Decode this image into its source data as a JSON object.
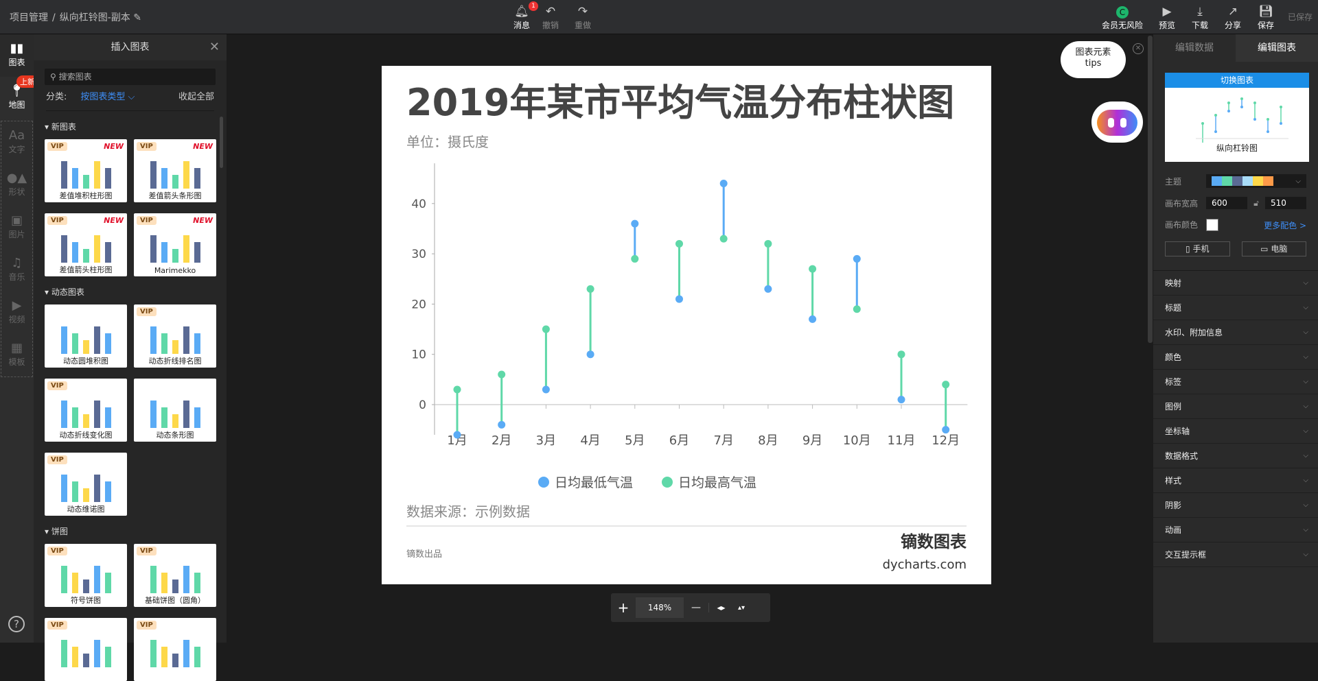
{
  "header": {
    "project": "项目管理",
    "separator": "/",
    "doc_title": "纵向杠铃图-副本",
    "msg": "消息",
    "msg_count": "1",
    "undo": "撤销",
    "redo": "重做",
    "member": "会员无风险",
    "preview": "预览",
    "download": "下载",
    "share": "分享",
    "save": "保存",
    "saved": "已保存"
  },
  "rail": {
    "items": [
      {
        "label": "图表",
        "icon": "bar-chart-icon"
      },
      {
        "label": "地图",
        "icon": "map-pin-icon"
      },
      {
        "label": "文字",
        "icon": "text-icon"
      },
      {
        "label": "形状",
        "icon": "shape-icon"
      },
      {
        "label": "图片",
        "icon": "image-icon"
      },
      {
        "label": "音乐",
        "icon": "music-icon"
      },
      {
        "label": "视频",
        "icon": "video-icon"
      },
      {
        "label": "模板",
        "icon": "template-icon"
      }
    ],
    "new_tag": "上新",
    "help": "?"
  },
  "panel": {
    "title": "插入图表",
    "search_placeholder": "搜索图表",
    "category_label": "分类:",
    "category_value": "按图表类型",
    "collapse_all": "收起全部",
    "sections": [
      {
        "title": "新图表",
        "cards": [
          {
            "label": "差值堆积柱形图",
            "vip": "VIP",
            "new": "NEW"
          },
          {
            "label": "差值箭头条形图",
            "vip": "VIP",
            "new": "NEW"
          },
          {
            "label": "差值箭头柱形图",
            "vip": "VIP",
            "new": "NEW"
          },
          {
            "label": "Marimekko",
            "vip": "VIP",
            "new": "NEW"
          }
        ]
      },
      {
        "title": "动态图表",
        "cards": [
          {
            "label": "动态圆堆积图"
          },
          {
            "label": "动态折线排名图",
            "vip": "VIP"
          },
          {
            "label": "动态折线变化图",
            "vip": "VIP"
          },
          {
            "label": "动态条形图"
          },
          {
            "label": "动态维诺图",
            "vip": "VIP"
          }
        ]
      },
      {
        "title": "饼图",
        "cards": [
          {
            "label": "符号饼图",
            "vip": "VIP"
          },
          {
            "label": "基础饼图（圆角）",
            "vip": "VIP"
          },
          {
            "label": "",
            "vip": "VIP"
          },
          {
            "label": "",
            "vip": "VIP"
          }
        ]
      }
    ]
  },
  "zoom": {
    "value": "148%",
    "plus": "+",
    "minus": "—"
  },
  "tips": {
    "line1": "图表元素",
    "line2": "tips"
  },
  "right": {
    "tab_data": "编辑数据",
    "tab_chart": "编辑图表",
    "switch": "切换图表",
    "chart_name": "纵向杠铃图",
    "theme_label": "主题",
    "theme_colors": [
      "#5aabf5",
      "#5fd8a8",
      "#5a6a94",
      "#a8dcf8",
      "#fdd84a",
      "#fd9a48"
    ],
    "size_label": "画布宽高",
    "width": "600",
    "height": "510",
    "bg_label": "画布颜色",
    "bg_color": "#ffffff",
    "more_colors": "更多配色 >",
    "mobile": "手机",
    "desktop": "电脑",
    "sections": [
      "映射",
      "标题",
      "水印、附加信息",
      "颜色",
      "标签",
      "图例",
      "坐标轴",
      "数据格式",
      "样式",
      "阴影",
      "动画",
      "交互提示框"
    ]
  },
  "chart_data": {
    "type": "dumbbell",
    "title": "2019年某市平均气温分布柱状图",
    "subtitle": "单位：摄氏度",
    "source": "数据来源：示例数据",
    "footer_left": "镝数出品",
    "brand": "镝数图表",
    "brand_url": "dycharts.com",
    "categories": [
      "1月",
      "2月",
      "3月",
      "4月",
      "5月",
      "6月",
      "7月",
      "8月",
      "9月",
      "10月",
      "11月",
      "12月"
    ],
    "series": [
      {
        "name": "日均最低气温",
        "color": "#5aabf5",
        "values": [
          -6,
          -4,
          3,
          10,
          36,
          21,
          44,
          23,
          17,
          29,
          1,
          -5
        ]
      },
      {
        "name": "日均最高气温",
        "color": "#5fd8a8",
        "values": [
          3,
          6,
          15,
          23,
          29,
          32,
          33,
          32,
          27,
          19,
          10,
          4
        ]
      }
    ],
    "yticks": [
      0,
      10,
      20,
      30,
      40
    ],
    "ylim": [
      -6,
      48
    ],
    "grid": false,
    "legend": "bottom"
  }
}
